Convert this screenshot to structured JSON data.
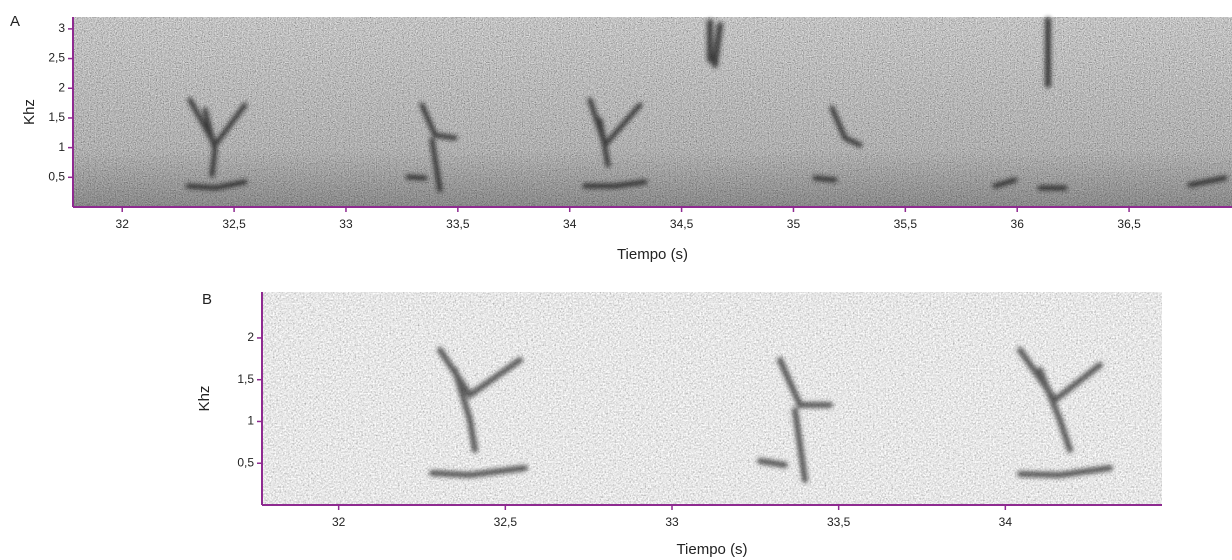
{
  "chart_data": [
    {
      "type": "spectrogram",
      "panel": "A",
      "x_label": "Tiempo (s)",
      "y_label": "Khz",
      "xlim": [
        31.78,
        36.96
      ],
      "xticks": [
        32,
        {
          "value": 32.5,
          "label": "32,5"
        },
        33,
        {
          "value": 33.5,
          "label": "33,5"
        },
        34,
        {
          "value": 34.5,
          "label": "34,5"
        },
        35,
        {
          "value": 35.5,
          "label": "35,5"
        },
        36,
        {
          "value": 36.5,
          "label": "36,5"
        }
      ],
      "ylim": [
        0,
        3.2
      ],
      "yticks": [
        {
          "value": 0.5,
          "label": "0,5"
        },
        1,
        {
          "value": 1.5,
          "label": "1,5"
        },
        2,
        {
          "value": 2.5,
          "label": "2,5"
        },
        3
      ],
      "axis_color": "#8e2a90"
    },
    {
      "type": "spectrogram",
      "panel": "B",
      "x_label": "Tiempo (s)",
      "y_label": "Khz",
      "xlim": [
        31.77,
        34.47
      ],
      "xticks": [
        32,
        {
          "value": 32.5,
          "label": "32,5"
        },
        33,
        {
          "value": 33.5,
          "label": "33,5"
        },
        34
      ],
      "ylim": [
        0,
        2.55
      ],
      "yticks": [
        {
          "value": 0.5,
          "label": "0,5"
        },
        1,
        {
          "value": 1.5,
          "label": "1,5"
        },
        2
      ],
      "axis_color": "#8e2a90"
    }
  ]
}
